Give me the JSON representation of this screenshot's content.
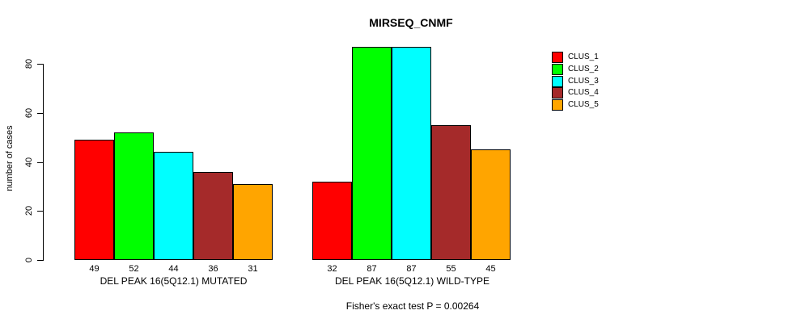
{
  "title": "MIRSEQ_CNMF",
  "footer": "Fisher's exact test P = 0.00264",
  "legend": {
    "entries": [
      {
        "label": "CLUS_1",
        "color": "#FF0000"
      },
      {
        "label": "CLUS_2",
        "color": "#00FF00"
      },
      {
        "label": "CLUS_3",
        "color": "#00FFFF"
      },
      {
        "label": "CLUS_4",
        "color": "#A52A2A"
      },
      {
        "label": "CLUS_5",
        "color": "#FFA500"
      }
    ]
  },
  "chart_data": {
    "type": "bar",
    "title": "MIRSEQ_CNMF",
    "xlabel": "",
    "ylabel": "number of cases",
    "ylim": [
      0,
      87
    ],
    "yticks": [
      0,
      20,
      40,
      60,
      80
    ],
    "grid": false,
    "legend_position": "right",
    "annotation": "Fisher's exact test P = 0.00264",
    "clusters": [
      "CLUS_1",
      "CLUS_2",
      "CLUS_3",
      "CLUS_4",
      "CLUS_5"
    ],
    "colors": [
      "#FF0000",
      "#00FF00",
      "#00FFFF",
      "#A52A2A",
      "#FFA500"
    ],
    "groups": [
      {
        "label": "DEL PEAK 16(5Q12.1) MUTATED",
        "bars": [
          {
            "cluster": "CLUS_1",
            "value": 49,
            "color": "#FF0000"
          },
          {
            "cluster": "CLUS_2",
            "value": 52,
            "color": "#00FF00"
          },
          {
            "cluster": "CLUS_3",
            "value": 44,
            "color": "#00FFFF"
          },
          {
            "cluster": "CLUS_4",
            "value": 36,
            "color": "#A52A2A"
          },
          {
            "cluster": "CLUS_5",
            "value": 31,
            "color": "#FFA500"
          }
        ]
      },
      {
        "label": "DEL PEAK 16(5Q12.1) WILD-TYPE",
        "bars": [
          {
            "cluster": "CLUS_1",
            "value": 32,
            "color": "#FF0000"
          },
          {
            "cluster": "CLUS_2",
            "value": 87,
            "color": "#00FF00"
          },
          {
            "cluster": "CLUS_3",
            "value": 87,
            "color": "#00FFFF"
          },
          {
            "cluster": "CLUS_4",
            "value": 55,
            "color": "#A52A2A"
          },
          {
            "cluster": "CLUS_5",
            "value": 45,
            "color": "#FFA500"
          }
        ]
      }
    ]
  }
}
